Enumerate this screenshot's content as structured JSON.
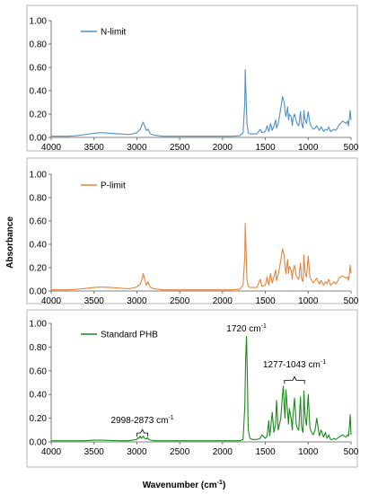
{
  "y_axis_label": "Absorbance",
  "x_axis_label": "Wavenumber (cm",
  "x_axis_label_sup": "-1",
  "x_axis_label_close": ")",
  "chart_data": [
    {
      "type": "line",
      "legend": "N-limit",
      "color": "#4f8fc9",
      "xlim": [
        4000,
        500
      ],
      "ylim": [
        0,
        1.0
      ],
      "x_reversed": true,
      "grid": false,
      "x_ticks": [
        "4000",
        "3500",
        "3000",
        "2500",
        "2000",
        "1500",
        "1000",
        "500"
      ],
      "y_ticks": [
        "0.00",
        "0.20",
        "0.40",
        "0.60",
        "0.80",
        "1.00"
      ],
      "series": [
        {
          "x": [
            4000,
            3800,
            3700,
            3600,
            3500,
            3450,
            3400,
            3300,
            3200,
            3100,
            3050,
            3000,
            2960,
            2940,
            2925,
            2910,
            2890,
            2870,
            2855,
            2840,
            2800,
            2700,
            2400,
            2100,
            1900,
            1800,
            1760,
            1740,
            1735,
            1725,
            1715,
            1700,
            1680,
            1650,
            1600,
            1560,
            1540,
            1500,
            1480,
            1460,
            1450,
            1440,
            1420,
            1400,
            1380,
            1370,
            1350,
            1320,
            1300,
            1280,
            1270,
            1260,
            1240,
            1230,
            1220,
            1200,
            1185,
            1180,
            1160,
            1140,
            1130,
            1110,
            1100,
            1090,
            1080,
            1070,
            1060,
            1050,
            1040,
            1030,
            1020,
            1000,
            980,
            960,
            940,
            920,
            900,
            870,
            850,
            820,
            800,
            780,
            760,
            740,
            720,
            700,
            680,
            660,
            640,
            620,
            600,
            580,
            560,
            540,
            530,
            520,
            510,
            500
          ],
          "y": [
            0.01,
            0.01,
            0.015,
            0.025,
            0.035,
            0.04,
            0.04,
            0.035,
            0.03,
            0.025,
            0.03,
            0.04,
            0.07,
            0.11,
            0.13,
            0.1,
            0.06,
            0.07,
            0.05,
            0.03,
            0.02,
            0.01,
            0.01,
            0.01,
            0.01,
            0.015,
            0.04,
            0.3,
            0.58,
            0.35,
            0.12,
            0.04,
            0.03,
            0.03,
            0.03,
            0.07,
            0.04,
            0.05,
            0.1,
            0.05,
            0.08,
            0.12,
            0.06,
            0.1,
            0.15,
            0.08,
            0.12,
            0.25,
            0.35,
            0.3,
            0.22,
            0.18,
            0.26,
            0.15,
            0.2,
            0.18,
            0.1,
            0.15,
            0.2,
            0.14,
            0.12,
            0.1,
            0.16,
            0.22,
            0.13,
            0.1,
            0.08,
            0.23,
            0.16,
            0.14,
            0.12,
            0.22,
            0.12,
            0.09,
            0.07,
            0.08,
            0.1,
            0.06,
            0.09,
            0.05,
            0.07,
            0.06,
            0.09,
            0.05,
            0.06,
            0.07,
            0.06,
            0.08,
            0.11,
            0.12,
            0.14,
            0.13,
            0.12,
            0.14,
            0.1,
            0.16,
            0.23,
            0.15
          ]
        }
      ]
    },
    {
      "type": "line",
      "legend": "P-limit",
      "color": "#e9823a",
      "xlim": [
        4000,
        500
      ],
      "ylim": [
        0,
        1.0
      ],
      "x_reversed": true,
      "grid": false,
      "x_ticks": [
        "4000",
        "3500",
        "3000",
        "2500",
        "2000",
        "1500",
        "1000",
        "500"
      ],
      "y_ticks": [
        "0.00",
        "0.20",
        "0.40",
        "0.60",
        "0.80",
        "1.00"
      ],
      "series": [
        {
          "x": [
            4000,
            3800,
            3700,
            3600,
            3500,
            3450,
            3400,
            3300,
            3200,
            3100,
            3050,
            3000,
            2960,
            2940,
            2925,
            2910,
            2890,
            2870,
            2855,
            2840,
            2800,
            2700,
            2400,
            2100,
            1900,
            1800,
            1760,
            1740,
            1735,
            1725,
            1715,
            1700,
            1680,
            1650,
            1600,
            1560,
            1540,
            1500,
            1480,
            1460,
            1450,
            1440,
            1420,
            1400,
            1380,
            1370,
            1350,
            1320,
            1300,
            1280,
            1270,
            1260,
            1240,
            1230,
            1220,
            1200,
            1185,
            1180,
            1160,
            1140,
            1130,
            1110,
            1100,
            1090,
            1080,
            1070,
            1060,
            1050,
            1040,
            1030,
            1020,
            1000,
            980,
            960,
            940,
            920,
            900,
            870,
            850,
            820,
            800,
            780,
            760,
            740,
            720,
            700,
            680,
            660,
            640,
            620,
            600,
            580,
            560,
            540,
            530,
            520,
            510,
            500
          ],
          "y": [
            0.01,
            0.01,
            0.015,
            0.022,
            0.03,
            0.033,
            0.033,
            0.03,
            0.025,
            0.02,
            0.025,
            0.035,
            0.06,
            0.1,
            0.15,
            0.1,
            0.05,
            0.08,
            0.05,
            0.03,
            0.02,
            0.01,
            0.01,
            0.01,
            0.01,
            0.015,
            0.05,
            0.3,
            0.58,
            0.35,
            0.1,
            0.04,
            0.03,
            0.03,
            0.03,
            0.1,
            0.04,
            0.05,
            0.12,
            0.05,
            0.09,
            0.15,
            0.07,
            0.12,
            0.18,
            0.09,
            0.14,
            0.26,
            0.36,
            0.3,
            0.2,
            0.15,
            0.27,
            0.15,
            0.21,
            0.18,
            0.1,
            0.16,
            0.22,
            0.13,
            0.12,
            0.1,
            0.18,
            0.24,
            0.12,
            0.09,
            0.08,
            0.31,
            0.18,
            0.14,
            0.12,
            0.3,
            0.12,
            0.09,
            0.07,
            0.09,
            0.11,
            0.06,
            0.09,
            0.05,
            0.08,
            0.06,
            0.1,
            0.05,
            0.06,
            0.08,
            0.06,
            0.08,
            0.11,
            0.12,
            0.13,
            0.12,
            0.11,
            0.12,
            0.09,
            0.14,
            0.22,
            0.15
          ]
        }
      ]
    },
    {
      "type": "line",
      "legend": "Standard PHB",
      "color": "#1a8a1a",
      "xlim": [
        4000,
        500
      ],
      "ylim": [
        0,
        1.0
      ],
      "x_reversed": true,
      "grid": false,
      "x_ticks": [
        "4000",
        "3500",
        "3000",
        "2500",
        "2000",
        "1500",
        "1000",
        "500"
      ],
      "y_ticks": [
        "0.00",
        "0.20",
        "0.40",
        "0.60",
        "0.80",
        "1.00"
      ],
      "series": [
        {
          "x": [
            4000,
            3800,
            3600,
            3500,
            3400,
            3300,
            3200,
            3100,
            3050,
            3000,
            2990,
            2975,
            2960,
            2950,
            2935,
            2925,
            2910,
            2890,
            2875,
            2860,
            2840,
            2800,
            2700,
            2400,
            2100,
            1900,
            1800,
            1760,
            1740,
            1730,
            1720,
            1710,
            1700,
            1680,
            1650,
            1600,
            1560,
            1540,
            1500,
            1480,
            1460,
            1450,
            1440,
            1420,
            1400,
            1380,
            1370,
            1350,
            1320,
            1300,
            1290,
            1280,
            1270,
            1260,
            1240,
            1230,
            1220,
            1200,
            1185,
            1180,
            1160,
            1140,
            1130,
            1110,
            1100,
            1090,
            1080,
            1070,
            1060,
            1050,
            1040,
            1030,
            1020,
            1000,
            980,
            960,
            940,
            920,
            900,
            870,
            850,
            820,
            800,
            780,
            760,
            740,
            720,
            700,
            680,
            660,
            640,
            620,
            600,
            580,
            560,
            540,
            530,
            520,
            510,
            500
          ],
          "y": [
            0.01,
            0.01,
            0.01,
            0.015,
            0.015,
            0.012,
            0.01,
            0.01,
            0.015,
            0.02,
            0.035,
            0.03,
            0.05,
            0.03,
            0.04,
            0.05,
            0.03,
            0.025,
            0.035,
            0.02,
            0.015,
            0.01,
            0.01,
            0.01,
            0.01,
            0.01,
            0.01,
            0.02,
            0.3,
            0.7,
            0.89,
            0.55,
            0.1,
            0.03,
            0.02,
            0.02,
            0.03,
            0.06,
            0.03,
            0.05,
            0.18,
            0.05,
            0.1,
            0.25,
            0.08,
            0.15,
            0.35,
            0.1,
            0.2,
            0.4,
            0.47,
            0.3,
            0.2,
            0.44,
            0.24,
            0.15,
            0.28,
            0.2,
            0.1,
            0.2,
            0.37,
            0.15,
            0.12,
            0.1,
            0.25,
            0.38,
            0.15,
            0.1,
            0.08,
            0.43,
            0.25,
            0.18,
            0.14,
            0.4,
            0.12,
            0.08,
            0.06,
            0.1,
            0.2,
            0.05,
            0.1,
            0.04,
            0.08,
            0.03,
            0.06,
            0.02,
            0.02,
            0.03,
            0.02,
            0.03,
            0.04,
            0.05,
            0.06,
            0.05,
            0.04,
            0.06,
            0.05,
            0.12,
            0.23,
            0.06
          ]
        }
      ],
      "annotations": [
        {
          "text": "1720 cm",
          "sup": "-1",
          "x": 1720,
          "y": 0.93
        },
        {
          "text": "1277-1043 cm",
          "sup": "-1",
          "x": 1160,
          "y": 0.63,
          "bracket": [
            1277,
            1043
          ],
          "bracket_y": 0.52
        },
        {
          "text": "2998-2873 cm",
          "sup": "-1",
          "x": 2935,
          "y": 0.16,
          "bracket": [
            2998,
            2873
          ],
          "bracket_y": 0.075
        }
      ]
    }
  ]
}
